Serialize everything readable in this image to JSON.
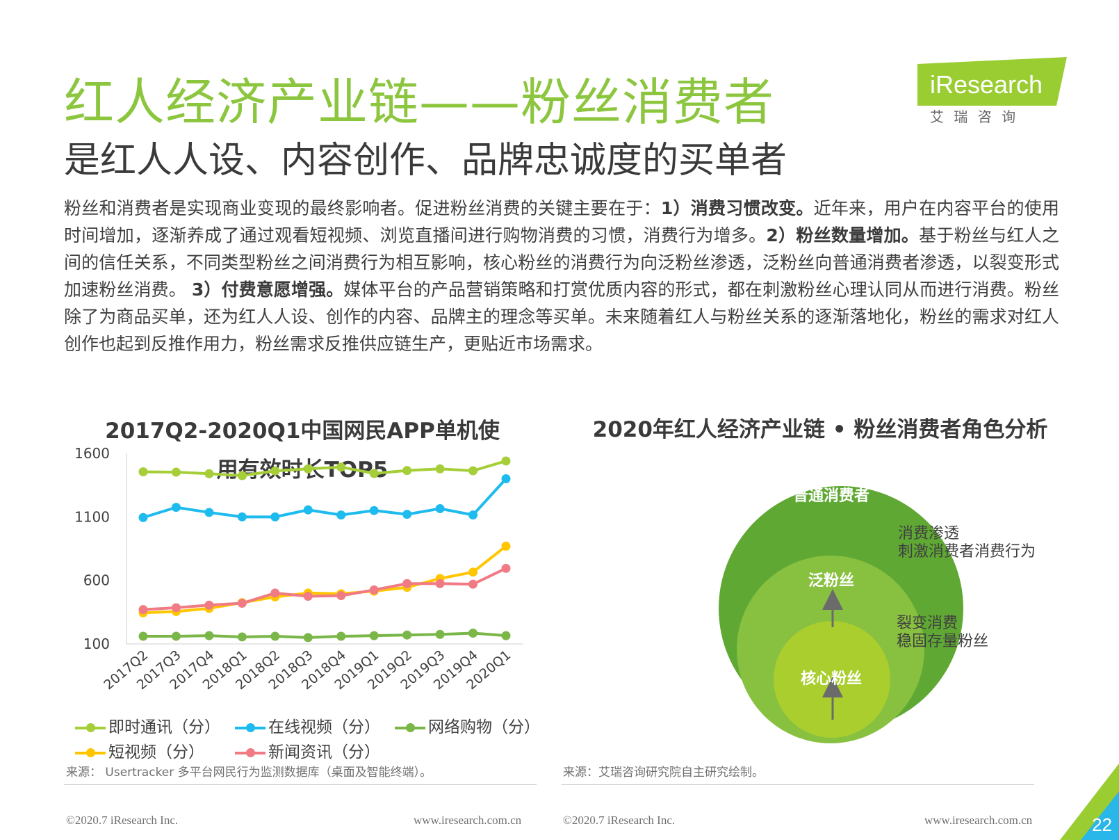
{
  "header": {
    "title": "红人经济产业链——粉丝消费者",
    "subtitle": "是红人人设、内容创作、品牌忠诚度的买单者",
    "logo_text": "iResearch",
    "logo_sub": "艾 瑞 咨 询"
  },
  "intro": {
    "p1": "粉丝和消费者是实现商业变现的最终影响者。促进粉丝消费的关键主要在于：",
    "b1": "1）消费习惯改变。",
    "p2": "近年来，用户在内容平台的使用时间增加，逐渐养成了通过观看短视频、浏览直播间进行购物消费的习惯，消费行为增多。",
    "b2": "2）粉丝数量增加。",
    "p3": "基于粉丝与红人之间的信任关系，不同类型粉丝之间消费行为相互影响，核心粉丝的消费行为向泛粉丝渗透，泛粉丝向普通消费者渗透，以裂变形式加速粉丝消费。 ",
    "b3": "3）付费意愿增强。",
    "p4": "媒体平台的产品营销策略和打赏优质内容的形式，都在刺激粉丝心理认同从而进行消费。粉丝除了为商品买单，还为红人人设、创作的内容、品牌主的理念等买单。未来随着红人与粉丝关系的逐渐落地化，粉丝的需求对红人创作也起到反推作用力，粉丝需求反推供应链生产，更贴近市场需求。"
  },
  "chart_data": [
    {
      "type": "line",
      "title": "2017Q2-2020Q1中国网民APP单机使用有效时长TOP5",
      "categories": [
        "2017Q2",
        "2017Q3",
        "2017Q4",
        "2018Q1",
        "2018Q2",
        "2018Q3",
        "2018Q4",
        "2019Q1",
        "2019Q2",
        "2019Q3",
        "2019Q4",
        "2020Q1"
      ],
      "yticks": [
        "1600",
        "1100",
        "600",
        "100"
      ],
      "ylim": [
        100,
        1600
      ],
      "grid": false,
      "legend_position": "bottom",
      "series": [
        {
          "name": "即时通讯（分）",
          "color": "#a6ce39",
          "values": [
            1455,
            1452,
            1440,
            1425,
            1462,
            1478,
            1492,
            1442,
            1465,
            1478,
            1463,
            1540
          ]
        },
        {
          "name": "在线视频（分）",
          "color": "#1ebbee",
          "values": [
            1095,
            1175,
            1135,
            1100,
            1100,
            1155,
            1115,
            1150,
            1120,
            1165,
            1115,
            1400
          ]
        },
        {
          "name": "网络购物（分）",
          "color": "#7ab648",
          "values": [
            160,
            160,
            165,
            155,
            160,
            150,
            160,
            165,
            170,
            175,
            185,
            165
          ]
        },
        {
          "name": "短视频（分）",
          "color": "#ffc600",
          "values": [
            345,
            355,
            380,
            425,
            470,
            500,
            495,
            515,
            545,
            615,
            665,
            870
          ]
        },
        {
          "name": "新闻资讯（分）",
          "color": "#f07b84",
          "values": [
            370,
            385,
            405,
            420,
            500,
            475,
            480,
            525,
            575,
            575,
            570,
            695
          ]
        }
      ]
    }
  ],
  "diagram": {
    "title": "2020年红人经济产业链 • 粉丝消费者角色分析",
    "outer_label": "普通消费者",
    "middle_label": "泛粉丝",
    "inner_label": "核心粉丝",
    "annotation_top_1": "消费渗透",
    "annotation_top_2": "刺激消费者消费行为",
    "annotation_bottom_1": "裂变消费",
    "annotation_bottom_2": "稳固存量粉丝",
    "colors": {
      "outer": "#5fa834",
      "middle": "#88c040",
      "inner": "#a9ce2e"
    }
  },
  "sources": {
    "left": "来源： Usertracker 多平台网民行为监测数据库（桌面及智能终端）。",
    "right": "来源：艾瑞咨询研究院自主研究绘制。"
  },
  "footer": {
    "copyright": "©2020.7 iResearch Inc.",
    "website": "www.iresearch.com.cn",
    "page_number": "22"
  }
}
